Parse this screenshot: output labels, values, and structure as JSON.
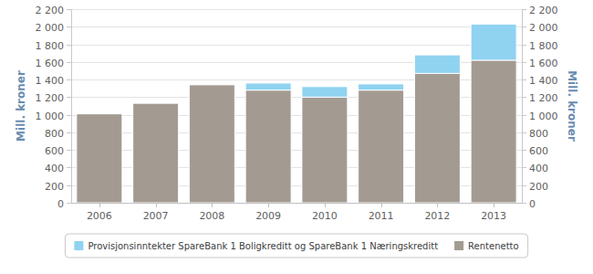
{
  "chart_data": {
    "type": "bar",
    "stacked": true,
    "grid": true,
    "legend": "bottom",
    "categories": [
      "2006",
      "2007",
      "2008",
      "2009",
      "2010",
      "2011",
      "2012",
      "2013"
    ],
    "series": [
      {
        "name": "Provisjonsinntekter SpareBank 1 Boligkreditt og SpareBank 1 Næringskreditt",
        "color": "#8fd3f1",
        "values": [
          0,
          0,
          0,
          80,
          120,
          70,
          210,
          410
        ]
      },
      {
        "name": "Rentenetto",
        "color": "#a39b92",
        "values": [
          1010,
          1130,
          1340,
          1280,
          1200,
          1280,
          1470,
          1620
        ]
      }
    ],
    "y_label": "Mill. kroner",
    "y2_label": "Mill. kroner",
    "ylim": [
      0,
      2200
    ],
    "yticks": [
      0,
      200,
      400,
      600,
      800,
      {
        "value": 1000,
        "label": "1 000"
      },
      {
        "value": 1200,
        "label": "1 200"
      },
      {
        "value": 1400,
        "label": "1 400"
      },
      {
        "value": 1600,
        "label": "1 600"
      },
      {
        "value": 1800,
        "label": "1 800"
      },
      {
        "value": 2000,
        "label": "2 000"
      },
      {
        "value": 2200,
        "label": "2 200"
      }
    ],
    "y2lim": [
      0,
      2200
    ],
    "y2ticks": [
      0,
      200,
      400,
      600,
      800,
      {
        "value": 1000,
        "label": "1 000"
      },
      {
        "value": 1200,
        "label": "1 200"
      },
      {
        "value": 1400,
        "label": "1 400"
      },
      {
        "value": 1600,
        "label": "1 600"
      },
      {
        "value": 1800,
        "label": "1 800"
      },
      {
        "value": 2000,
        "label": "2 000"
      },
      {
        "value": 2200,
        "label": "2 200"
      }
    ]
  }
}
